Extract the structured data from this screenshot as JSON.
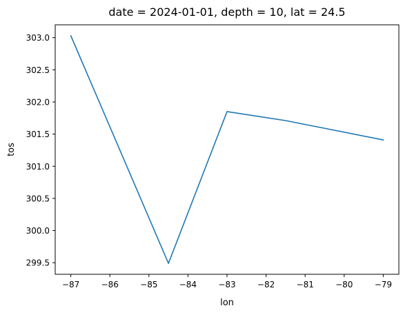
{
  "chart_data": {
    "type": "line",
    "title": "date = 2024-01-01, depth = 10, lat = 24.5",
    "xlabel": "lon",
    "ylabel": "tos",
    "xlim": [
      -87.4,
      -78.6
    ],
    "ylim": [
      299.32,
      303.2
    ],
    "x_ticks": [
      -87,
      -86,
      -85,
      -84,
      -83,
      -82,
      -81,
      -80,
      -79
    ],
    "y_ticks": [
      299.5,
      300.0,
      300.5,
      301.0,
      301.5,
      302.0,
      302.5,
      303.0
    ],
    "x_tick_labels": [
      "−87",
      "−86",
      "−85",
      "−84",
      "−83",
      "−82",
      "−81",
      "−80",
      "−79"
    ],
    "y_tick_labels": [
      "299.5",
      "300.0",
      "300.5",
      "301.0",
      "301.5",
      "302.0",
      "302.5",
      "303.0"
    ],
    "grid": false,
    "series": [
      {
        "color": "#1f77b4",
        "points": [
          {
            "x": -87.0,
            "y": 303.03
          },
          {
            "x": -84.5,
            "y": 299.49
          },
          {
            "x": -83.0,
            "y": 301.85
          },
          {
            "x": -81.5,
            "y": 301.71
          },
          {
            "x": -79.0,
            "y": 301.41
          }
        ]
      }
    ]
  }
}
